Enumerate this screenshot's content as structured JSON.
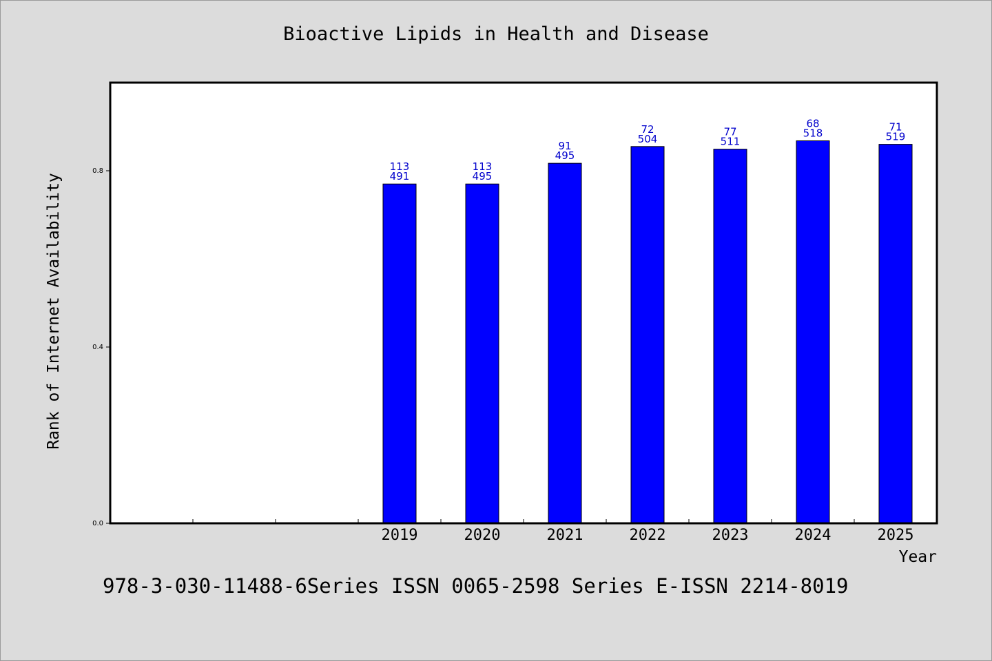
{
  "chart_data": {
    "type": "bar",
    "title": "Bioactive Lipids in Health and Disease",
    "xlabel": "Year",
    "ylabel": "Rank of Internet Availability",
    "ylim": [
      0,
      1.0
    ],
    "yticks": [
      0.0,
      0.4,
      0.8
    ],
    "ytick_labels": [
      "0.0",
      "0.4",
      "0.8"
    ],
    "categories": [
      "",
      "",
      "",
      "2019",
      "2020",
      "2021",
      "2022",
      "2023",
      "2024",
      "2025"
    ],
    "values": [
      null,
      null,
      null,
      0.77,
      0.77,
      0.817,
      0.855,
      0.849,
      0.868,
      0.86
    ],
    "labels_top": [
      "",
      "",
      "",
      "113",
      "113",
      "91",
      "72",
      "77",
      "68",
      "71"
    ],
    "labels_bottom": [
      "",
      "",
      "",
      "491",
      "495",
      "495",
      "504",
      "511",
      "518",
      "519"
    ],
    "bar_color": "#0000ff",
    "label_color": "#0000cc",
    "grid": false
  },
  "footer": {
    "text": "978-3-030-11488-6Series ISSN 0065-2598 Series E-ISSN 2214-8019"
  }
}
